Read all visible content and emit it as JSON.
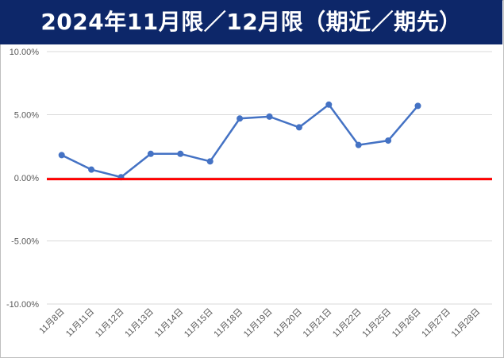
{
  "title": "2024年11月限／12月限（期近／期先）",
  "chart_data": {
    "type": "line",
    "title": "2024年11月限／12月限（期近／期先）",
    "categories": [
      "11月8日",
      "11月11日",
      "11月12日",
      "11月13日",
      "11月14日",
      "11月15日",
      "11月18日",
      "11月19日",
      "11月20日",
      "11月21日",
      "11月22日",
      "11月25日",
      "11月26日",
      "11月27日",
      "11月28日"
    ],
    "series": [
      {
        "values": [
          1.8,
          0.65,
          0.05,
          1.9,
          1.9,
          1.3,
          4.7,
          4.85,
          4.0,
          5.8,
          2.6,
          2.95,
          5.7,
          null,
          null
        ],
        "color": "#4472c4"
      },
      {
        "values": [
          -0.1,
          -0.1,
          -0.1,
          -0.1,
          -0.1,
          -0.1,
          -0.1,
          -0.1,
          -0.1,
          -0.1,
          -0.1,
          -0.1,
          -0.1,
          -0.1,
          -0.1
        ],
        "color": "#ff0000"
      }
    ],
    "yticks": [
      "10.00%",
      "5.00%",
      "0.00%",
      "-5.00%",
      "-10.00%"
    ],
    "ylim": [
      -10,
      10
    ],
    "grid": true,
    "legend": "none"
  }
}
